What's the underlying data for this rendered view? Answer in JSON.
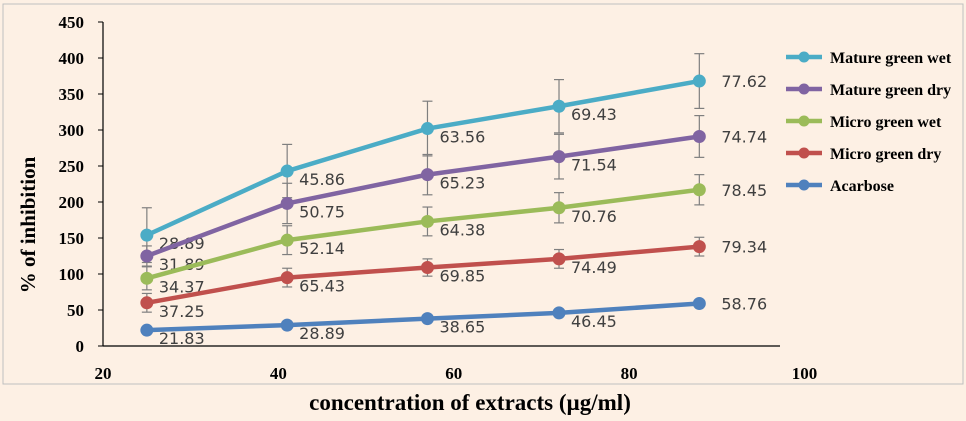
{
  "chart_data": {
    "type": "line",
    "xlabel": "concentration of extracts (µg/ml)",
    "ylabel": "% of inhibition",
    "xlim": [
      20,
      100
    ],
    "ylim": [
      0,
      450
    ],
    "x_ticks": [
      "20",
      "40",
      "60",
      "80",
      "100"
    ],
    "y_ticks": [
      "0",
      "50",
      "100",
      "150",
      "200",
      "250",
      "300",
      "350",
      "400",
      "450"
    ],
    "x": [
      25,
      41,
      57,
      72,
      88
    ],
    "legend_position": "right",
    "grid": false,
    "series": [
      {
        "name": "Mature green wet",
        "color": "#4bacc6",
        "values": [
          154,
          243,
          302,
          333,
          368
        ],
        "errors": [
          38,
          37,
          38,
          37,
          38
        ],
        "labels": [
          "28.89",
          "45.86",
          "63.56",
          "69.43",
          "77.62"
        ]
      },
      {
        "name": "Mature green dry",
        "color": "#8064a2",
        "values": [
          125,
          198,
          238,
          263,
          291
        ],
        "errors": [
          14,
          28,
          28,
          31,
          29
        ],
        "labels": [
          "31.89",
          "50.75",
          "65.23",
          "71.54",
          "74.74"
        ]
      },
      {
        "name": "Micro green wet",
        "color": "#9bbb59",
        "values": [
          94,
          147,
          173,
          192,
          217
        ],
        "errors": [
          16,
          20,
          20,
          21,
          21
        ],
        "labels": [
          "34.37",
          "52.14",
          "64.38",
          "70.76",
          "78.45"
        ]
      },
      {
        "name": "Micro green dry",
        "color": "#c0504d",
        "values": [
          60,
          95,
          109,
          121,
          138
        ],
        "errors": [
          13,
          13,
          12,
          13,
          13
        ],
        "labels": [
          "37.25",
          "65.43",
          "69.85",
          "74.49",
          "79.34"
        ]
      },
      {
        "name": "Acarbose",
        "color": "#4f81bd",
        "values": [
          22,
          29,
          38,
          46,
          59
        ],
        "errors": [
          4,
          4,
          4,
          4,
          4
        ],
        "labels": [
          "21.83",
          "28.89",
          "38.65",
          "46.45",
          "58.76"
        ]
      }
    ]
  }
}
